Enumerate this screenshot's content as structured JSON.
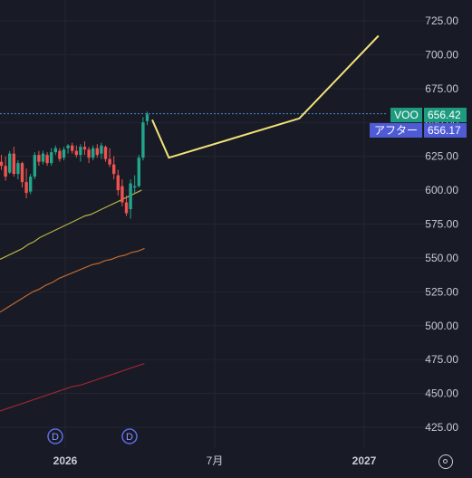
{
  "chart_data": {
    "type": "candlestick",
    "symbol": "VOO",
    "last_price_label": "656.42",
    "after_hours_label": "アフター",
    "after_hours_price": "656.17",
    "y_ticks": [
      "725.00",
      "700.00",
      "675.00",
      "650.00",
      "625.00",
      "600.00",
      "575.00",
      "550.00",
      "525.00",
      "500.00",
      "475.00",
      "450.00",
      "425.00"
    ],
    "y_tick_values": [
      725,
      700,
      675,
      650,
      625,
      600,
      575,
      550,
      525,
      500,
      475,
      450,
      425
    ],
    "ylim": [
      410,
      740
    ],
    "x_ticks": [
      "2026",
      "7月",
      "2027"
    ],
    "dividend_markers": [
      "D",
      "D"
    ],
    "candles": [
      {
        "o": 621,
        "h": 626,
        "l": 615,
        "c": 618
      },
      {
        "o": 618,
        "h": 625,
        "l": 607,
        "c": 610
      },
      {
        "o": 613,
        "h": 629,
        "l": 612,
        "c": 627
      },
      {
        "o": 627,
        "h": 632,
        "l": 610,
        "c": 612
      },
      {
        "o": 612,
        "h": 622,
        "l": 608,
        "c": 620
      },
      {
        "o": 620,
        "h": 621,
        "l": 602,
        "c": 606
      },
      {
        "o": 606,
        "h": 616,
        "l": 594,
        "c": 598
      },
      {
        "o": 599,
        "h": 612,
        "l": 597,
        "c": 610
      },
      {
        "o": 610,
        "h": 628,
        "l": 608,
        "c": 626
      },
      {
        "o": 626,
        "h": 629,
        "l": 618,
        "c": 621
      },
      {
        "o": 621,
        "h": 629,
        "l": 619,
        "c": 627
      },
      {
        "o": 626,
        "h": 628,
        "l": 618,
        "c": 620
      },
      {
        "o": 620,
        "h": 631,
        "l": 618,
        "c": 628
      },
      {
        "o": 628,
        "h": 633,
        "l": 626,
        "c": 631
      },
      {
        "o": 629,
        "h": 631,
        "l": 621,
        "c": 623
      },
      {
        "o": 624,
        "h": 632,
        "l": 622,
        "c": 630
      },
      {
        "o": 631,
        "h": 634,
        "l": 627,
        "c": 633
      },
      {
        "o": 633,
        "h": 635,
        "l": 627,
        "c": 629
      },
      {
        "o": 629,
        "h": 633,
        "l": 624,
        "c": 626
      },
      {
        "o": 626,
        "h": 634,
        "l": 621,
        "c": 632
      },
      {
        "o": 632,
        "h": 636,
        "l": 626,
        "c": 630
      },
      {
        "o": 630,
        "h": 632,
        "l": 620,
        "c": 624
      },
      {
        "o": 624,
        "h": 633,
        "l": 622,
        "c": 631
      },
      {
        "o": 631,
        "h": 634,
        "l": 624,
        "c": 626
      },
      {
        "o": 627,
        "h": 635,
        "l": 623,
        "c": 633
      },
      {
        "o": 632,
        "h": 633,
        "l": 621,
        "c": 623
      },
      {
        "o": 623,
        "h": 631,
        "l": 617,
        "c": 619
      },
      {
        "o": 619,
        "h": 625,
        "l": 608,
        "c": 612
      },
      {
        "o": 611,
        "h": 615,
        "l": 596,
        "c": 600
      },
      {
        "o": 603,
        "h": 608,
        "l": 588,
        "c": 591
      },
      {
        "o": 591,
        "h": 596,
        "l": 581,
        "c": 583
      },
      {
        "o": 586,
        "h": 608,
        "l": 579,
        "c": 605
      },
      {
        "o": 602,
        "h": 611,
        "l": 598,
        "c": 603
      },
      {
        "o": 603,
        "h": 626,
        "l": 602,
        "c": 624
      },
      {
        "o": 624,
        "h": 654,
        "l": 622,
        "c": 650
      },
      {
        "o": 651,
        "h": 658,
        "l": 648,
        "c": 656
      }
    ],
    "projection": [
      {
        "idx": 36.2,
        "v": 652
      },
      {
        "idx": 40.2,
        "v": 624
      },
      {
        "idx": 71.5,
        "v": 653
      },
      {
        "idx": 90.5,
        "v": 714
      }
    ],
    "ma_series": [
      {
        "color": "#b8b443",
        "values": [
          549,
          551,
          553,
          555,
          557,
          560,
          562,
          565,
          567,
          569,
          571,
          573,
          575,
          577,
          579,
          581,
          582,
          584,
          586,
          588,
          590,
          592,
          594,
          596,
          598,
          600
        ]
      },
      {
        "color": "#c06a2e",
        "values": [
          510,
          513,
          516,
          519,
          522,
          525,
          527,
          530,
          532,
          535,
          537,
          539,
          541,
          543,
          545,
          546,
          548,
          549,
          551,
          552,
          554,
          555,
          557
        ]
      },
      {
        "color": "#9c2732",
        "values": [
          437,
          439,
          441,
          443,
          445,
          447,
          449,
          451,
          453,
          455,
          456,
          458,
          460,
          462,
          464,
          466,
          468,
          470,
          472
        ]
      }
    ],
    "colors": {
      "up": "#22a58b",
      "down": "#ef5350",
      "projection": "#f3e27a",
      "price_line": "#4a8bd3",
      "grid": "#232633",
      "axis_text": "#c9ccd6"
    }
  }
}
